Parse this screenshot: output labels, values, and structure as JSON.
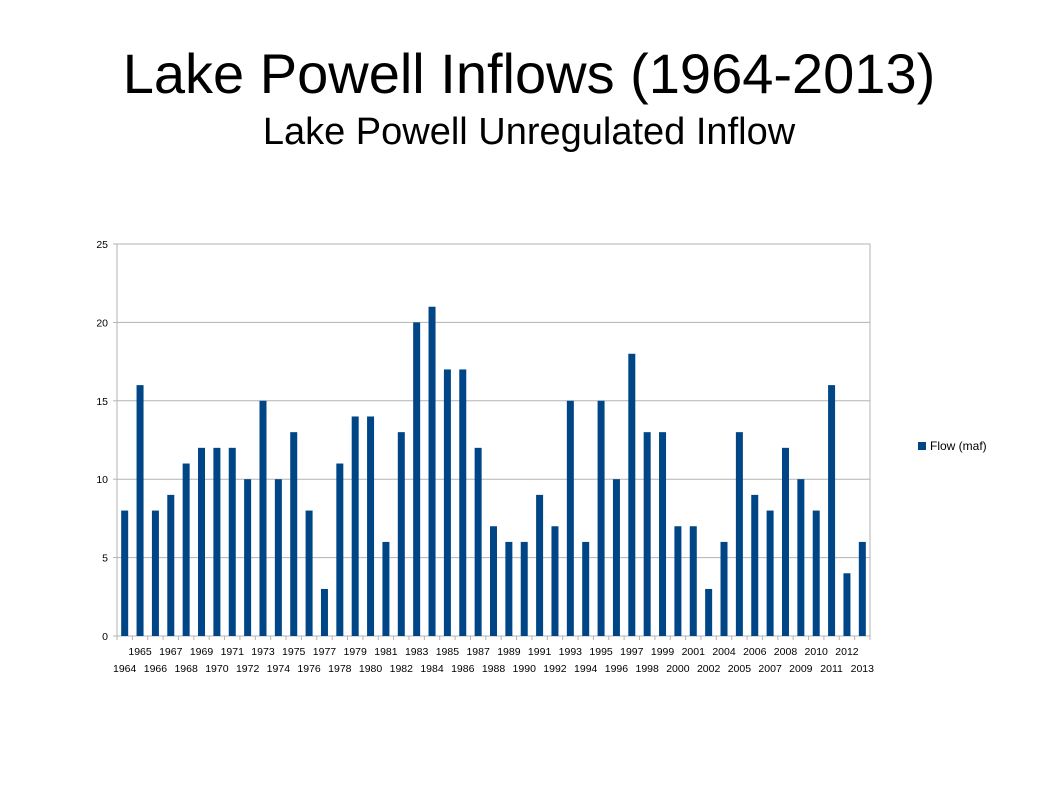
{
  "slide": {
    "title": "Lake Powell Inflows (1964-2013)",
    "subtitle": "Lake Powell Unregulated Inflow"
  },
  "chart_data": {
    "type": "bar",
    "categories": [
      "1964",
      "1965",
      "1966",
      "1967",
      "1968",
      "1969",
      "1970",
      "1971",
      "1972",
      "1973",
      "1974",
      "1975",
      "1976",
      "1977",
      "1978",
      "1979",
      "1980",
      "1981",
      "1982",
      "1983",
      "1984",
      "1985",
      "1986",
      "1987",
      "1988",
      "1989",
      "1990",
      "1991",
      "1992",
      "1993",
      "1994",
      "1995",
      "1996",
      "1997",
      "1998",
      "1999",
      "2000",
      "2001",
      "2002",
      "2004",
      "2005",
      "2006",
      "2007",
      "2008",
      "2009",
      "2010",
      "2011",
      "2012",
      "2013"
    ],
    "series": [
      {
        "name": "Flow (maf)",
        "color": "#004586",
        "values": [
          8,
          16,
          8,
          9,
          11,
          12,
          12,
          12,
          10,
          15,
          10,
          13,
          8,
          3,
          11,
          14,
          14,
          6,
          13,
          20,
          21,
          17,
          17,
          12,
          7,
          6,
          6,
          9,
          7,
          15,
          6,
          15,
          10,
          18,
          13,
          13,
          7,
          7,
          3,
          6,
          13,
          9,
          8,
          12,
          10,
          8,
          16,
          4,
          6
        ]
      }
    ],
    "yticks": [
      "0",
      "5",
      "10",
      "15",
      "20",
      "25"
    ],
    "ylim": [
      0,
      25
    ],
    "grid": true,
    "legend_position": "right",
    "xlabel": "",
    "ylabel": ""
  }
}
